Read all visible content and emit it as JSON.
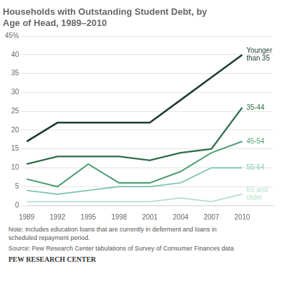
{
  "chart_data": {
    "type": "line",
    "title": [
      "Households with Outstanding Student Debt, by",
      "Age of Head, 1989–2010"
    ],
    "x": [
      1989,
      1992,
      1995,
      1998,
      2001,
      2004,
      2007,
      2010
    ],
    "series": [
      {
        "name": "Younger\nthan 35",
        "color": "#1c3d2e",
        "values": [
          17,
          22,
          22,
          22,
          22,
          28,
          34,
          40
        ]
      },
      {
        "name": "35-44",
        "color": "#2d6b4a",
        "values": [
          11,
          13,
          13,
          13,
          12,
          14,
          15,
          26
        ]
      },
      {
        "name": "45-54",
        "color": "#4e9e75",
        "values": [
          7,
          5,
          11,
          6,
          6,
          9,
          14,
          17
        ]
      },
      {
        "name": "55-64",
        "color": "#80c9a8",
        "values": [
          4,
          3,
          4,
          5,
          5,
          6,
          10,
          10
        ]
      },
      {
        "name": "65 and\nolder",
        "color": "#b2dfc8",
        "values": [
          1,
          1,
          1,
          1,
          1,
          2,
          1,
          3
        ]
      }
    ],
    "xlim": [
      1989,
      2013
    ],
    "xticks": [
      1989,
      1992,
      1995,
      1998,
      2001,
      2004,
      2007,
      2010
    ],
    "ylim": [
      0,
      45
    ],
    "yticks": [
      0,
      5,
      10,
      15,
      20,
      25,
      30,
      35,
      40,
      {
        "value": 45,
        "label": "45%"
      }
    ],
    "grid": true,
    "annotations": [
      "Note: Includes education loans that are currently in deferment and loans in\nscheduled repayment period.",
      "Source: Pew Research Center tabulations of Survey of Consumer Finances data",
      "PEW RESEARCH CENTER"
    ]
  }
}
